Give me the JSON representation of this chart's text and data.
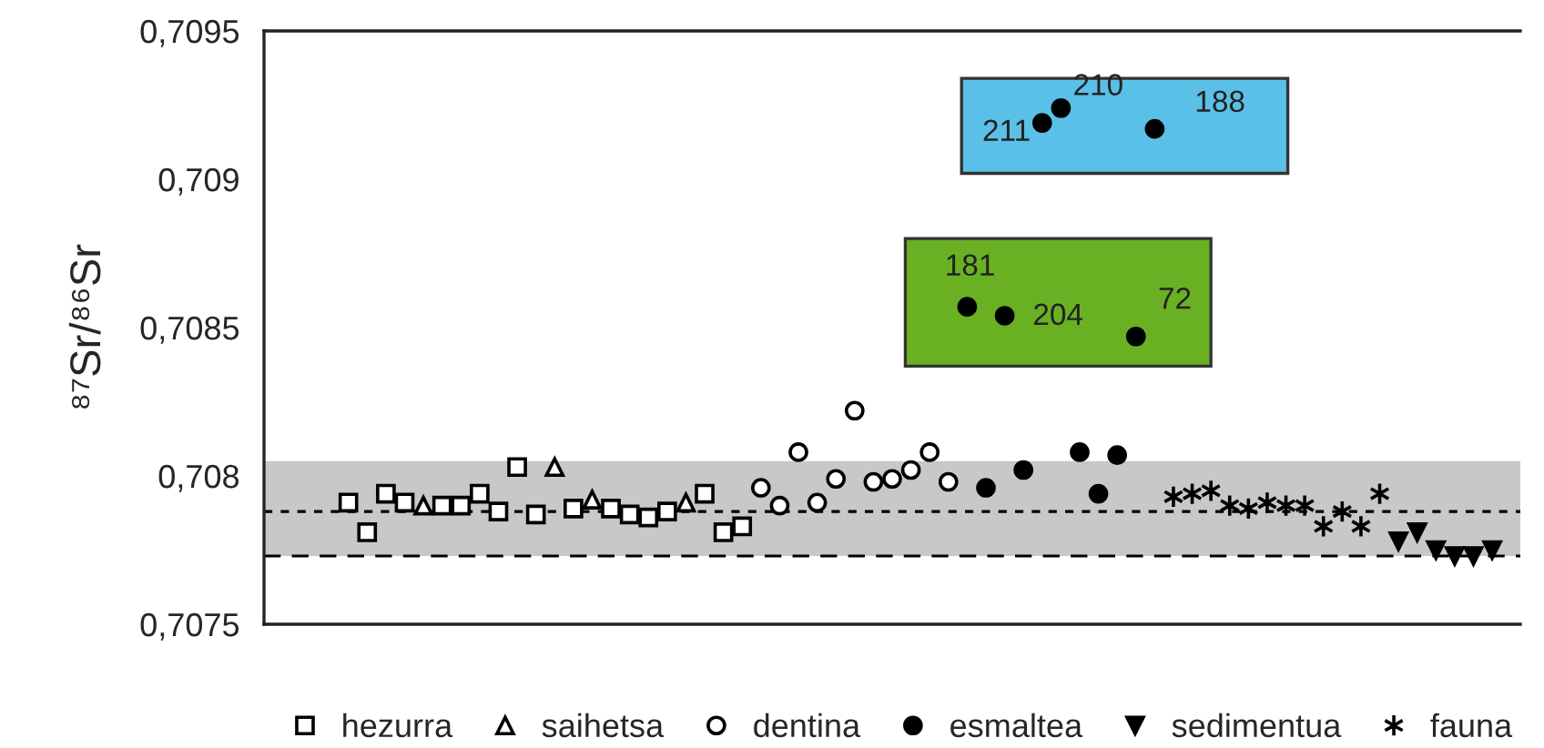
{
  "chart_data": {
    "type": "scatter",
    "ylabel": "⁸⁷Sr/⁸⁶Sr",
    "categories": [
      null,
      null,
      null,
      null,
      null,
      null,
      null,
      null,
      null,
      null,
      null,
      null,
      null,
      null,
      null,
      null,
      null,
      null,
      null,
      null,
      null,
      null,
      null,
      null,
      null,
      null,
      null,
      null,
      null,
      null,
      null,
      null,
      null,
      null,
      null,
      null,
      null,
      null,
      null,
      null,
      null,
      null,
      null,
      null,
      null,
      null,
      null,
      null,
      null,
      null,
      null,
      null,
      null,
      null,
      null,
      null,
      null,
      null,
      null,
      null,
      null,
      null,
      null,
      null,
      null,
      null,
      null
    ],
    "ylim": [
      0.7075,
      0.7095
    ],
    "yticks": [
      {
        "value": 0.7075,
        "label": "0,7075"
      },
      {
        "value": 0.708,
        "label": "0,708"
      },
      {
        "value": 0.7085,
        "label": "0,7085"
      },
      {
        "value": 0.709,
        "label": "0,709"
      },
      {
        "value": 0.7095,
        "label": "0,7095"
      }
    ],
    "tick_labels": "y",
    "grid": false,
    "legend": "bottom",
    "series": [
      {
        "name": "hezurra",
        "color": "#ffffff",
        "marker": "square",
        "values": [
          null,
          null,
          null,
          null,
          0.70791,
          0.70781,
          0.70794,
          0.70791,
          null,
          0.7079,
          0.7079,
          0.70794,
          0.70788,
          0.70803,
          0.70787,
          null,
          0.70789,
          null,
          0.70789,
          0.70787,
          0.70786,
          0.70788,
          null,
          0.70794,
          0.70781,
          0.70783,
          null,
          null,
          null,
          null,
          null,
          null,
          null,
          null,
          null,
          null,
          null,
          null,
          null,
          null,
          null,
          null,
          null,
          null,
          null,
          null,
          null,
          null,
          null,
          null,
          null,
          null,
          null,
          null,
          null,
          null,
          null,
          null,
          null,
          null,
          null,
          null,
          null,
          null,
          null,
          null,
          null
        ]
      },
      {
        "name": "saihetsa",
        "color": "#ffffff",
        "marker": "triangle",
        "values": [
          null,
          null,
          null,
          null,
          null,
          null,
          null,
          null,
          0.7079,
          null,
          null,
          null,
          null,
          null,
          null,
          0.70803,
          null,
          0.70792,
          null,
          null,
          null,
          null,
          0.70791,
          null,
          null,
          null,
          null,
          null,
          null,
          null,
          null,
          null,
          null,
          null,
          null,
          null,
          null,
          null,
          null,
          null,
          null,
          null,
          null,
          null,
          null,
          null,
          null,
          null,
          null,
          null,
          null,
          null,
          null,
          null,
          null,
          null,
          null,
          null,
          null,
          null,
          null,
          null,
          null,
          null,
          null,
          null,
          null
        ]
      },
      {
        "name": "dentina",
        "color": "#ffffff",
        "marker": "circle",
        "values": [
          null,
          null,
          null,
          null,
          null,
          null,
          null,
          null,
          null,
          null,
          null,
          null,
          null,
          null,
          null,
          null,
          null,
          null,
          null,
          null,
          null,
          null,
          null,
          null,
          null,
          null,
          0.70796,
          0.7079,
          0.70808,
          0.70791,
          0.70799,
          0.70822,
          0.70798,
          0.70799,
          0.70802,
          0.70808,
          0.70798,
          null,
          null,
          null,
          null,
          null,
          null,
          null,
          null,
          null,
          null,
          null,
          null,
          null,
          null,
          null,
          null,
          null,
          null,
          null,
          null,
          null,
          null,
          null,
          null,
          null,
          null,
          null,
          null,
          null,
          null
        ]
      },
      {
        "name": "esmaltea",
        "color": "#000000",
        "marker": "circle",
        "values": [
          null,
          null,
          null,
          null,
          null,
          null,
          null,
          null,
          null,
          null,
          null,
          null,
          null,
          null,
          null,
          null,
          null,
          null,
          null,
          null,
          null,
          null,
          null,
          null,
          null,
          null,
          null,
          null,
          null,
          null,
          null,
          null,
          null,
          null,
          null,
          null,
          null,
          0.70857,
          0.70796,
          0.70854,
          0.70802,
          0.70919,
          0.70924,
          0.70808,
          0.70794,
          0.70807,
          0.70847,
          0.70917,
          null,
          null,
          null,
          null,
          null,
          null,
          null,
          null,
          null,
          null,
          null,
          null,
          null,
          null,
          null,
          null,
          null,
          null,
          null
        ]
      },
      {
        "name": "sedimentua",
        "color": "#000000",
        "marker": "triangle_down",
        "values": [
          null,
          null,
          null,
          null,
          null,
          null,
          null,
          null,
          null,
          null,
          null,
          null,
          null,
          null,
          null,
          null,
          null,
          null,
          null,
          null,
          null,
          null,
          null,
          null,
          null,
          null,
          null,
          null,
          null,
          null,
          null,
          null,
          null,
          null,
          null,
          null,
          null,
          null,
          null,
          null,
          null,
          null,
          null,
          null,
          null,
          null,
          null,
          null,
          null,
          null,
          null,
          null,
          null,
          null,
          null,
          null,
          null,
          null,
          null,
          null,
          0.70778,
          0.70781,
          0.70775,
          0.70773,
          0.70773,
          0.70775,
          null
        ]
      },
      {
        "name": "fauna",
        "color": "#000000",
        "marker": "cross",
        "values": [
          null,
          null,
          null,
          null,
          null,
          null,
          null,
          null,
          null,
          null,
          null,
          null,
          null,
          null,
          null,
          null,
          null,
          null,
          null,
          null,
          null,
          null,
          null,
          null,
          null,
          null,
          null,
          null,
          null,
          null,
          null,
          null,
          null,
          null,
          null,
          null,
          null,
          null,
          null,
          null,
          null,
          null,
          null,
          null,
          null,
          null,
          null,
          null,
          0.70793,
          0.70794,
          0.70795,
          0.7079,
          0.70789,
          0.70791,
          0.7079,
          0.7079,
          0.70783,
          0.70788,
          0.70783,
          0.70794,
          null,
          null,
          null,
          null,
          null,
          null,
          null
        ]
      }
    ],
    "annotations": [
      "181",
      "204",
      "211",
      "210",
      "72",
      "188"
    ],
    "ref_lines": [
      {
        "axis": "y",
        "value": 0.70788,
        "line_style": "dotted"
      },
      {
        "axis": "y",
        "value": 0.70773,
        "line_style": "dashed"
      }
    ],
    "bands": [
      {
        "axis": "y",
        "from": 0.70773,
        "to": 0.70805,
        "color": "#c8c8c8"
      }
    ]
  }
}
